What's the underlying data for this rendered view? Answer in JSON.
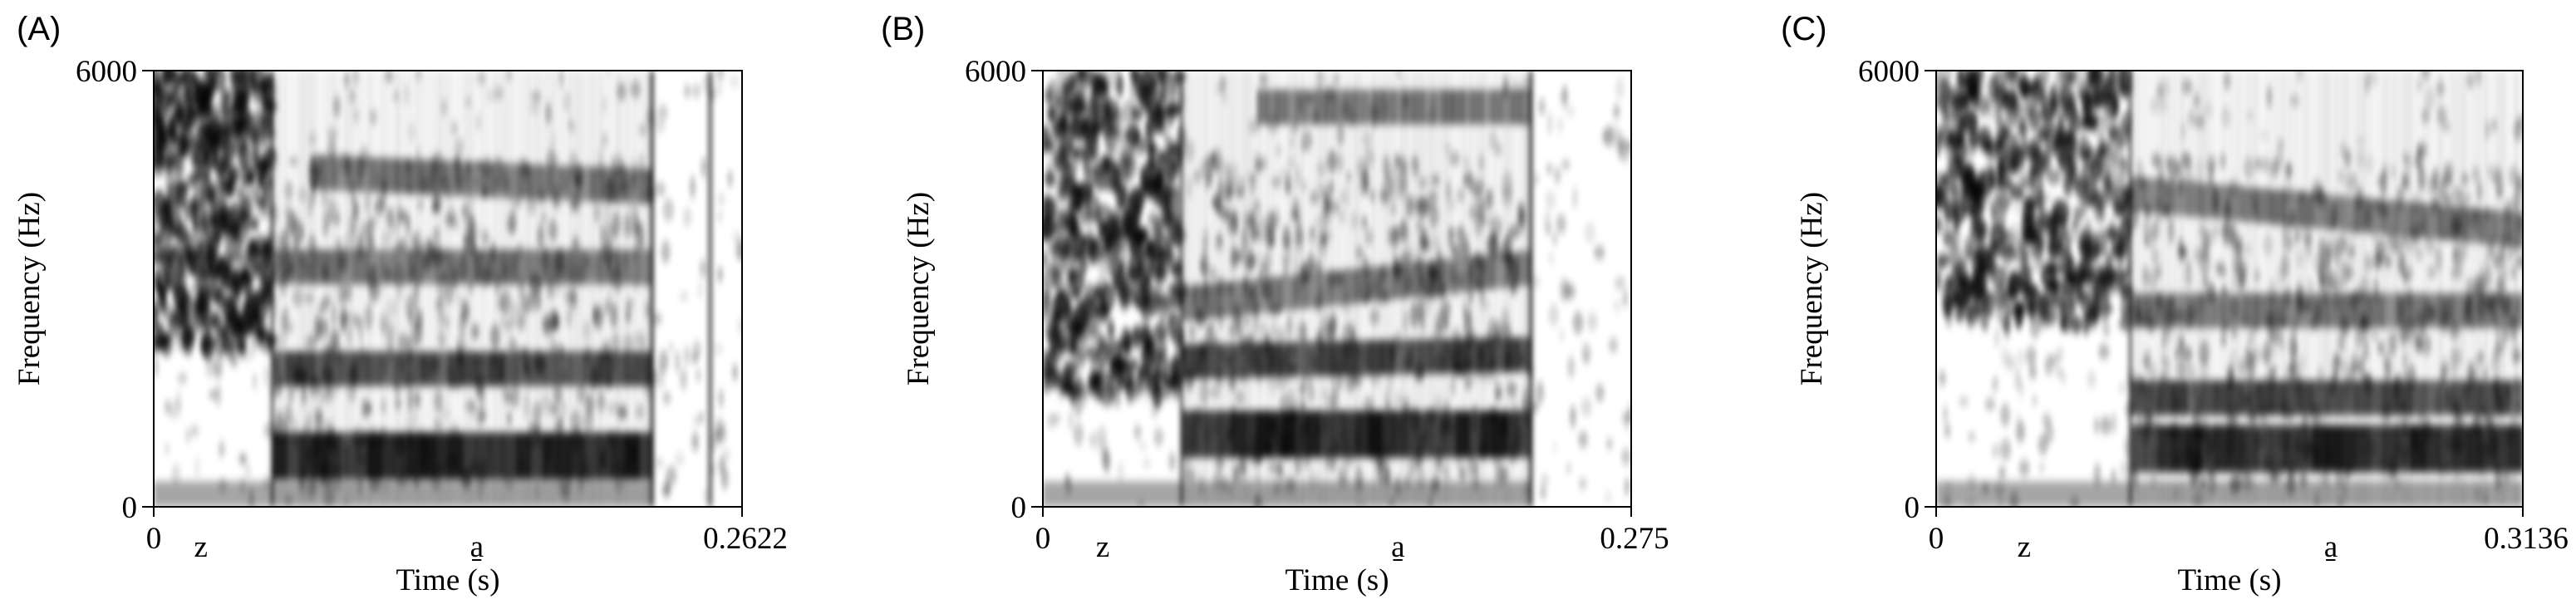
{
  "chart_data": [
    {
      "type": "heatmap",
      "panel_label": "(A)",
      "xlabel": "Time (s)",
      "ylabel": "Frequency (Hz)",
      "xlim": [
        0,
        0.2622
      ],
      "ylim": [
        0,
        6000
      ],
      "x_ticks": [
        "0",
        "0.2622"
      ],
      "y_ticks": [
        "0",
        "6000"
      ],
      "segments": [
        {
          "label": "z",
          "time": 0.021
        },
        {
          "label": "a̱",
          "time": 0.144
        }
      ],
      "voicing_onset": 0.053,
      "vowel_end": 0.222,
      "burst_time": 0.248,
      "formants": [
        {
          "time": [
            0.053,
            0.222
          ],
          "freq": [
            700,
            700
          ]
        },
        {
          "time": [
            0.053,
            0.222
          ],
          "freq": [
            1900,
            1900
          ]
        },
        {
          "time": [
            0.053,
            0.222
          ],
          "freq": [
            3300,
            3300
          ]
        },
        {
          "time": [
            0.07,
            0.222
          ],
          "freq": [
            4600,
            4400
          ]
        }
      ],
      "frication_band": [
        2200,
        6000
      ]
    },
    {
      "type": "heatmap",
      "panel_label": "(B)",
      "xlabel": "Time (s)",
      "ylabel": "Frequency (Hz)",
      "xlim": [
        0,
        0.275
      ],
      "ylim": [
        0,
        6000
      ],
      "x_ticks": [
        "0",
        "0.275"
      ],
      "y_ticks": [
        "0",
        "6000"
      ],
      "segments": [
        {
          "label": "z",
          "time": 0.028
        },
        {
          "label": "a̱",
          "time": 0.166
        }
      ],
      "voicing_onset": 0.065,
      "vowel_end": 0.228,
      "formants": [
        {
          "time": [
            0.065,
            0.228
          ],
          "freq": [
            1000,
            1000
          ]
        },
        {
          "time": [
            0.065,
            0.228
          ],
          "freq": [
            2000,
            2100
          ]
        },
        {
          "time": [
            0.065,
            0.228
          ],
          "freq": [
            2800,
            3300
          ]
        },
        {
          "time": [
            0.1,
            0.228
          ],
          "freq": [
            5500,
            5500
          ]
        }
      ],
      "frication_band": [
        1500,
        6000
      ]
    },
    {
      "type": "heatmap",
      "panel_label": "(C)",
      "xlabel": "Time (s)",
      "ylabel": "Frequency (Hz)",
      "xlim": [
        0,
        0.3136
      ],
      "ylim": [
        0,
        6000
      ],
      "x_ticks": [
        "0",
        "0.3136"
      ],
      "y_ticks": [
        "0",
        "6000"
      ],
      "segments": [
        {
          "label": "z",
          "time": 0.047
        },
        {
          "label": "a̱",
          "time": 0.211
        }
      ],
      "voicing_onset": 0.104,
      "vowel_end": 0.3136,
      "formants": [
        {
          "time": [
            0.104,
            0.3136
          ],
          "freq": [
            800,
            800
          ]
        },
        {
          "time": [
            0.104,
            0.3136
          ],
          "freq": [
            1500,
            1500
          ]
        },
        {
          "time": [
            0.104,
            0.3136
          ],
          "freq": [
            2700,
            2700
          ]
        },
        {
          "time": [
            0.104,
            0.3136
          ],
          "freq": [
            4300,
            3800
          ]
        }
      ],
      "frication_band": [
        2500,
        6000
      ]
    }
  ]
}
